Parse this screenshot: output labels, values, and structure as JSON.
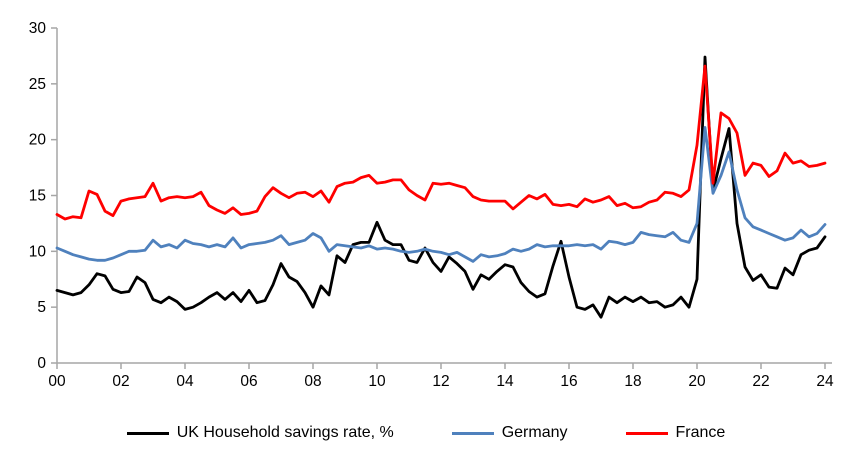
{
  "chart_data": {
    "type": "line",
    "title": "",
    "xlabel": "",
    "ylabel": "",
    "ylim": [
      0,
      30
    ],
    "y_ticks": [
      0,
      5,
      10,
      15,
      20,
      25,
      30
    ],
    "x_tick_labels": [
      "00",
      "02",
      "04",
      "06",
      "08",
      "10",
      "12",
      "14",
      "16",
      "18",
      "20",
      "22",
      "24"
    ],
    "x_start_year": 2000,
    "x_end_year": 2024,
    "points_per_year": 4,
    "grid": false,
    "legend_position": "bottom",
    "axis_color": "#a6a6a6",
    "tick_label_color": "#000000",
    "series": [
      {
        "name": "UK Household savings rate, %",
        "color": "#000000",
        "values": [
          6.5,
          6.3,
          6.1,
          6.3,
          7.0,
          8.0,
          7.8,
          6.6,
          6.3,
          6.4,
          7.7,
          7.2,
          5.7,
          5.4,
          5.9,
          5.5,
          4.8,
          5.0,
          5.4,
          5.9,
          6.3,
          5.7,
          6.3,
          5.5,
          6.5,
          5.4,
          5.6,
          7.0,
          8.9,
          7.7,
          7.3,
          6.3,
          5.0,
          6.9,
          6.1,
          9.6,
          9.0,
          10.6,
          10.8,
          10.8,
          12.6,
          11.0,
          10.6,
          10.6,
          9.2,
          9.0,
          10.3,
          9.0,
          8.2,
          9.5,
          8.9,
          8.2,
          6.6,
          7.9,
          7.5,
          8.2,
          8.8,
          8.6,
          7.2,
          6.4,
          5.9,
          6.2,
          8.7,
          10.9,
          7.7,
          5.0,
          4.8,
          5.2,
          4.1,
          5.9,
          5.4,
          5.9,
          5.5,
          5.9,
          5.4,
          5.5,
          5.0,
          5.2,
          5.9,
          5.0,
          7.5,
          27.4,
          15.4,
          18.3,
          21.0,
          12.5,
          8.6,
          7.4,
          7.9,
          6.8,
          6.7,
          8.5,
          7.9,
          9.7,
          10.1,
          10.3,
          11.3
        ]
      },
      {
        "name": "Germany",
        "color": "#4F81BD",
        "values": [
          10.3,
          10.0,
          9.7,
          9.5,
          9.3,
          9.2,
          9.2,
          9.4,
          9.7,
          10.0,
          10.0,
          10.1,
          11.0,
          10.4,
          10.6,
          10.3,
          11.0,
          10.7,
          10.6,
          10.4,
          10.6,
          10.4,
          11.2,
          10.3,
          10.6,
          10.7,
          10.8,
          11.0,
          11.4,
          10.6,
          10.8,
          11.0,
          11.6,
          11.2,
          10.0,
          10.6,
          10.5,
          10.4,
          10.3,
          10.5,
          10.2,
          10.3,
          10.2,
          10.0,
          9.9,
          10.0,
          10.2,
          10.0,
          9.9,
          9.7,
          9.9,
          9.5,
          9.1,
          9.7,
          9.5,
          9.6,
          9.8,
          10.2,
          10.0,
          10.2,
          10.6,
          10.4,
          10.5,
          10.5,
          10.5,
          10.6,
          10.5,
          10.6,
          10.2,
          10.9,
          10.8,
          10.6,
          10.8,
          11.7,
          11.5,
          11.4,
          11.3,
          11.7,
          11.0,
          10.8,
          12.5,
          21.1,
          15.2,
          16.8,
          18.9,
          15.5,
          13.0,
          12.2,
          11.9,
          11.6,
          11.3,
          11.0,
          11.2,
          11.9,
          11.3,
          11.6,
          12.4
        ]
      },
      {
        "name": "France",
        "color": "#FF0000",
        "values": [
          13.3,
          12.9,
          13.1,
          13.0,
          15.4,
          15.1,
          13.6,
          13.2,
          14.5,
          14.7,
          14.8,
          14.9,
          16.1,
          14.5,
          14.8,
          14.9,
          14.8,
          14.9,
          15.3,
          14.1,
          13.7,
          13.4,
          13.9,
          13.3,
          13.4,
          13.6,
          14.9,
          15.7,
          15.2,
          14.8,
          15.2,
          15.3,
          14.9,
          15.4,
          14.4,
          15.8,
          16.1,
          16.2,
          16.6,
          16.8,
          16.1,
          16.2,
          16.4,
          16.4,
          15.5,
          15.0,
          14.6,
          16.1,
          16.0,
          16.1,
          15.9,
          15.7,
          14.9,
          14.6,
          14.5,
          14.5,
          14.5,
          13.8,
          14.4,
          15.0,
          14.7,
          15.1,
          14.2,
          14.1,
          14.2,
          14.0,
          14.7,
          14.4,
          14.6,
          14.9,
          14.1,
          14.3,
          13.9,
          14.0,
          14.4,
          14.6,
          15.3,
          15.2,
          14.9,
          15.5,
          19.5,
          26.6,
          16.1,
          22.4,
          21.9,
          20.6,
          16.8,
          17.9,
          17.7,
          16.7,
          17.2,
          18.8,
          17.9,
          18.1,
          17.6,
          17.7,
          17.9
        ]
      }
    ]
  }
}
